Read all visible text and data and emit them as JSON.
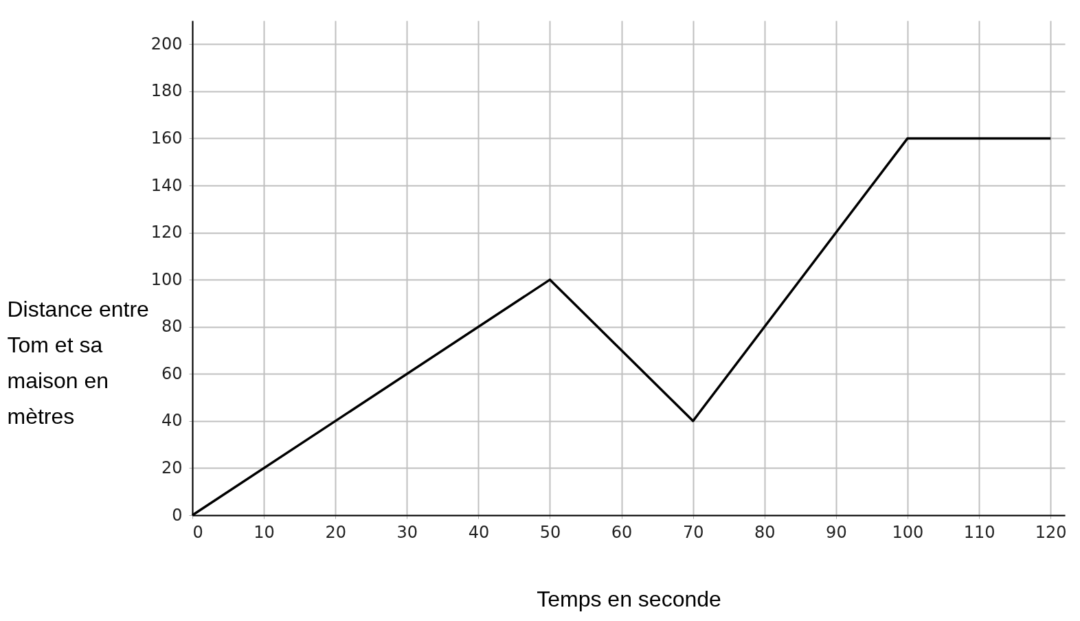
{
  "chart_data": {
    "type": "line",
    "xlabel": "Temps en seconde",
    "ylabel": "Distance entre Tom et sa maison en mètres",
    "x": [
      0,
      50,
      70,
      100,
      120
    ],
    "series": [
      {
        "color": "#000000",
        "values": [
          0,
          100,
          40,
          160,
          160
        ]
      }
    ],
    "xlim": [
      0,
      122
    ],
    "ylim": [
      0,
      210
    ],
    "xticks": [
      0,
      10,
      20,
      30,
      40,
      50,
      60,
      70,
      80,
      90,
      100,
      110,
      120
    ],
    "yticks": [
      0,
      20,
      40,
      60,
      80,
      100,
      120,
      140,
      160,
      180,
      200
    ],
    "grid": true,
    "marker": "none",
    "line_style": "solid"
  }
}
